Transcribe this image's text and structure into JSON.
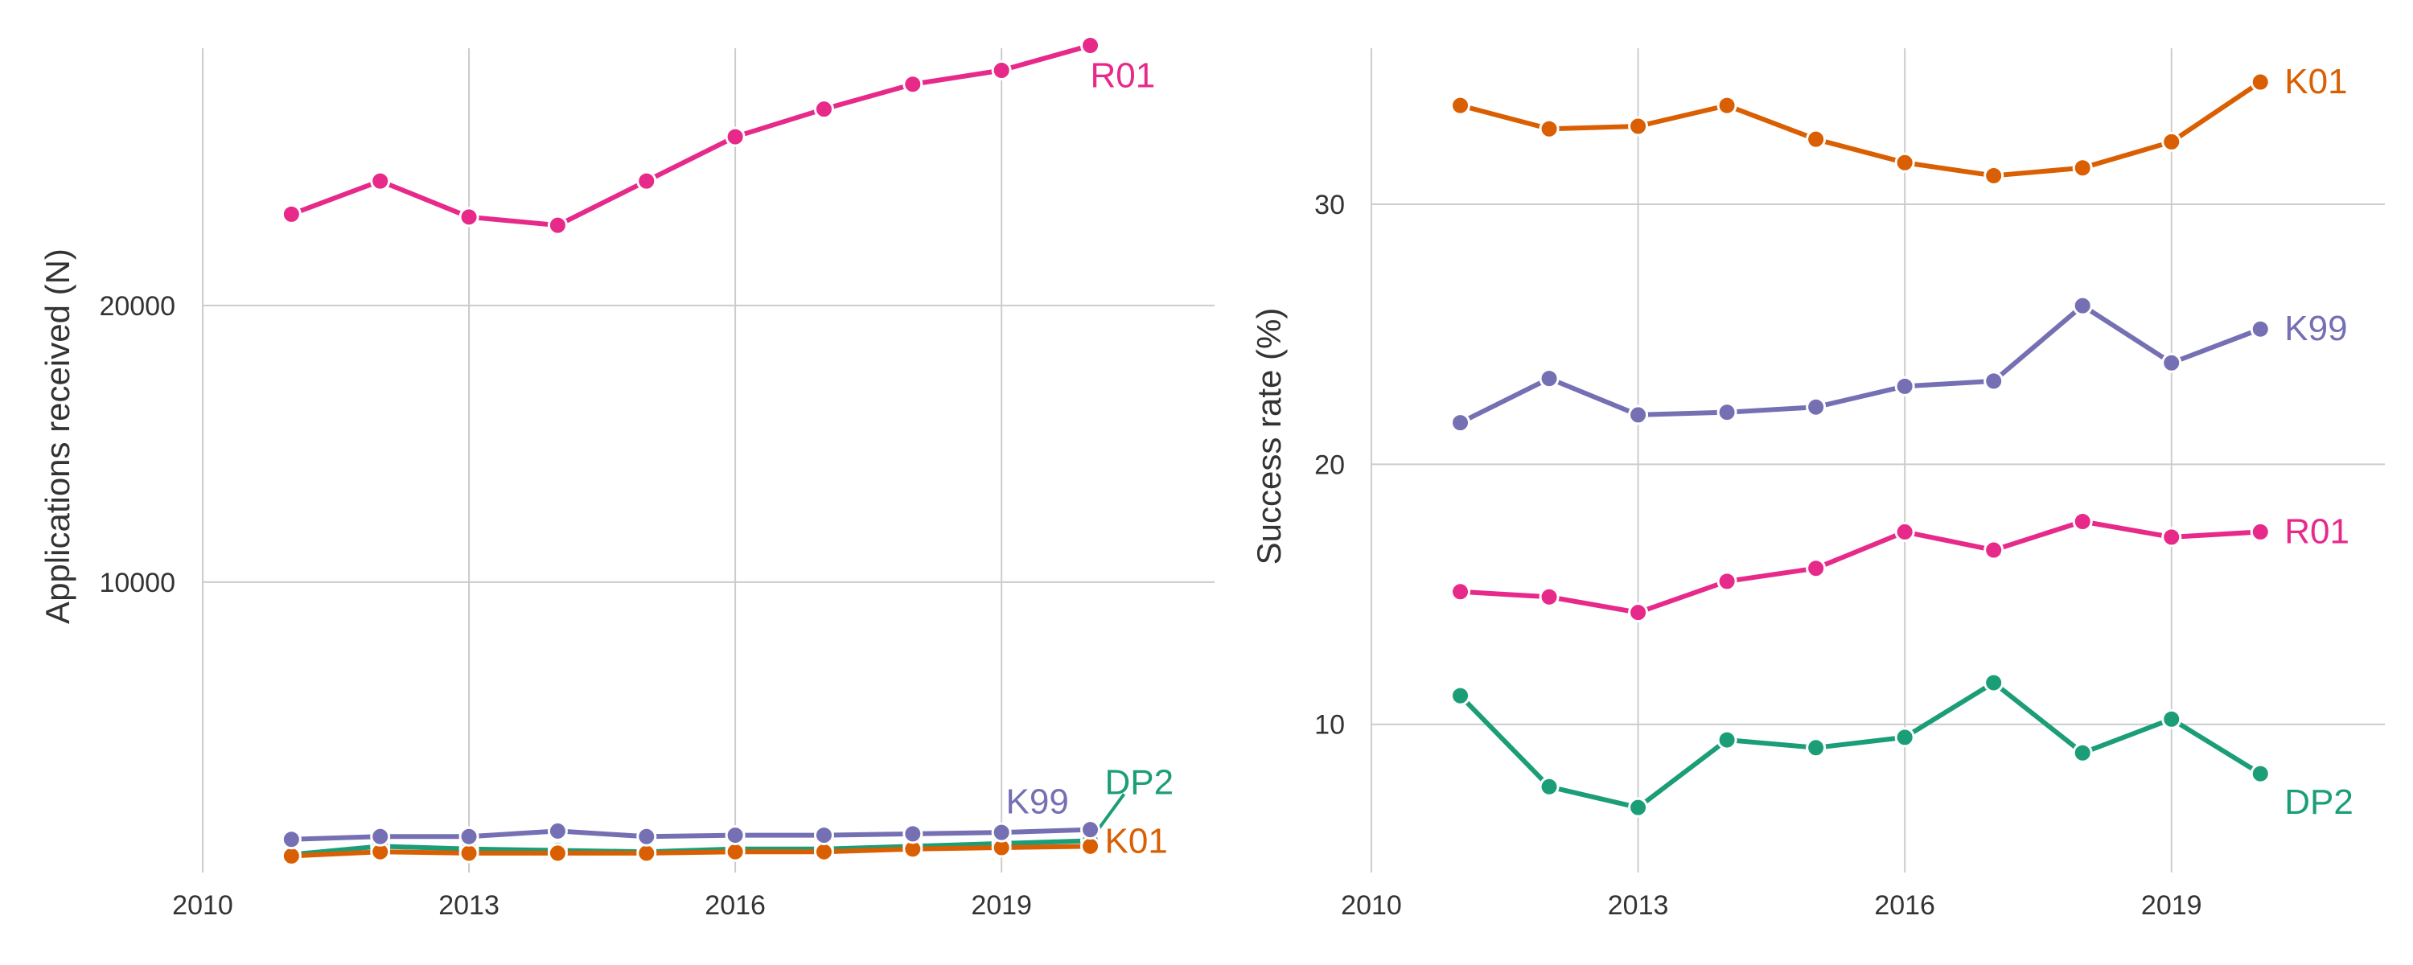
{
  "chart_data": [
    {
      "type": "line",
      "title": "",
      "xlabel": "",
      "ylabel": "Applications received (N)",
      "xlim": [
        2010,
        2021.4
      ],
      "ylim": [
        -500,
        29300
      ],
      "xticks": [
        "2010",
        "2013",
        "2016",
        "2019"
      ],
      "yticks": [
        "10000",
        "20000"
      ],
      "x": [
        2011,
        2012,
        2013,
        2014,
        2015,
        2016,
        2017,
        2018,
        2019,
        2020
      ],
      "series": [
        {
          "name": "DP2",
          "label": "DP2",
          "color": "#1b9e77",
          "values": [
            150,
            450,
            350,
            300,
            250,
            350,
            350,
            450,
            550,
            650
          ]
        },
        {
          "name": "K01",
          "label": "K01",
          "color": "#d95f02",
          "values": [
            100,
            250,
            200,
            200,
            200,
            250,
            250,
            350,
            400,
            450
          ]
        },
        {
          "name": "K99",
          "label": "K99",
          "color": "#7570b3",
          "values": [
            700,
            800,
            800,
            1000,
            800,
            850,
            850,
            900,
            950,
            1050
          ]
        },
        {
          "name": "R01",
          "label": "R01",
          "color": "#e7298a",
          "values": [
            23300,
            24500,
            23200,
            22900,
            24500,
            26100,
            27100,
            28000,
            28500,
            29400
          ]
        }
      ],
      "grid": true
    },
    {
      "type": "line",
      "title": "",
      "xlabel": "",
      "ylabel": "Success rate (%)",
      "xlim": [
        2010,
        2021.4
      ],
      "ylim": [
        4.3,
        36
      ],
      "xticks": [
        "2010",
        "2013",
        "2016",
        "2019"
      ],
      "yticks": [
        "10",
        "20",
        "30"
      ],
      "x": [
        2011,
        2012,
        2013,
        2014,
        2015,
        2016,
        2017,
        2018,
        2019,
        2020
      ],
      "series": [
        {
          "name": "K01",
          "label": "K01",
          "color": "#d95f02",
          "values": [
            33.8,
            32.9,
            33.0,
            33.8,
            32.5,
            31.6,
            31.1,
            31.4,
            32.4,
            34.7
          ]
        },
        {
          "name": "K99",
          "label": "K99",
          "color": "#7570b3",
          "values": [
            21.6,
            23.3,
            21.9,
            22.0,
            22.2,
            23.0,
            23.2,
            26.1,
            23.9,
            25.2
          ]
        },
        {
          "name": "R01",
          "label": "R01",
          "color": "#e7298a",
          "values": [
            15.1,
            14.9,
            14.3,
            15.5,
            16.0,
            17.4,
            16.7,
            17.8,
            17.2,
            17.4
          ]
        },
        {
          "name": "DP2",
          "label": "DP2",
          "color": "#1b9e77",
          "values": [
            11.1,
            7.6,
            6.8,
            9.4,
            9.1,
            9.5,
            11.6,
            8.9,
            10.2,
            8.1
          ]
        }
      ],
      "grid": true
    }
  ]
}
